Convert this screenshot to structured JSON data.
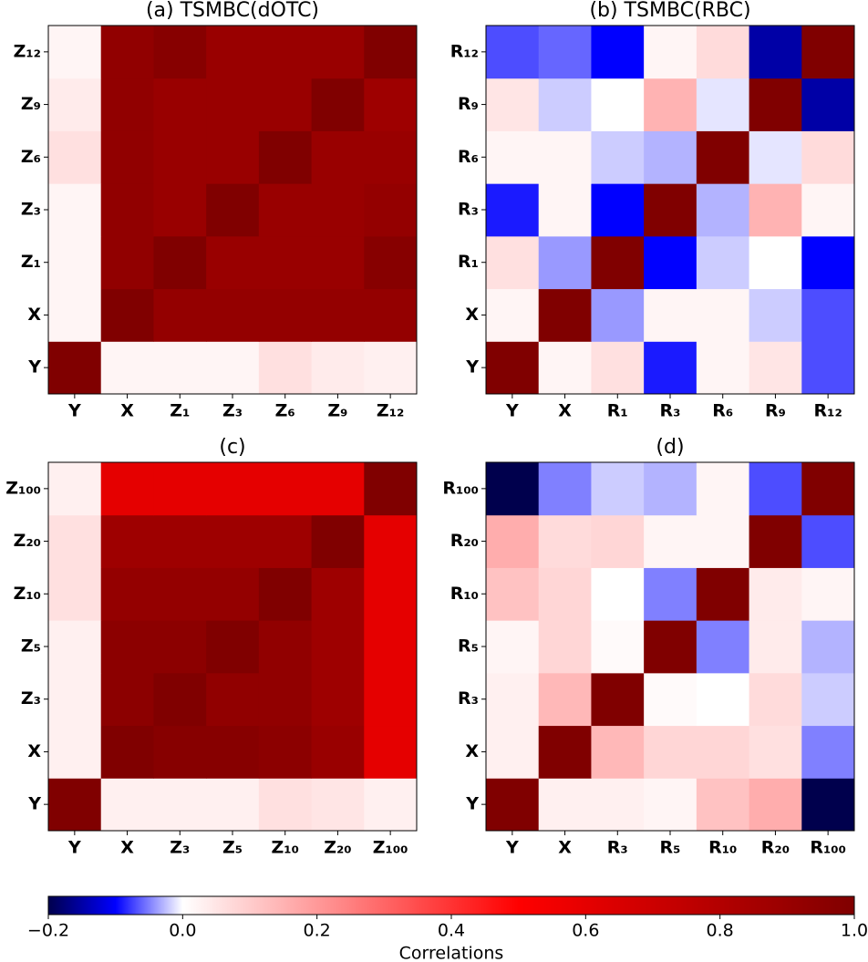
{
  "chart_data": [
    {
      "type": "heatmap",
      "title": "(a) TSMBC(dOTC)",
      "categories": [
        "Y",
        "X",
        "Z₁",
        "Z₃",
        "Z₆",
        "Z₉",
        "Z₁₂"
      ],
      "values": [
        [
          1,
          0.02,
          0.02,
          0.02,
          0.06,
          0.04,
          0.03
        ],
        [
          0.02,
          1,
          0.92,
          0.92,
          0.92,
          0.92,
          0.92
        ],
        [
          0.02,
          0.93,
          1,
          0.9,
          0.9,
          0.9,
          0.97
        ],
        [
          0.02,
          0.93,
          0.9,
          1,
          0.9,
          0.9,
          0.92
        ],
        [
          0.06,
          0.93,
          0.9,
          0.9,
          1,
          0.9,
          0.9
        ],
        [
          0.04,
          0.93,
          0.9,
          0.9,
          0.9,
          1,
          0.88
        ],
        [
          0.02,
          0.93,
          0.97,
          0.9,
          0.9,
          0.9,
          1
        ]
      ]
    },
    {
      "type": "heatmap",
      "title": "(b) TSMBC(RBC)",
      "categories": [
        "Y",
        "X",
        "R₁",
        "R₃",
        "R₆",
        "R₉",
        "R₁₂"
      ],
      "values": [
        [
          1,
          0.02,
          0.06,
          -0.09,
          0.02,
          0.05,
          -0.07
        ],
        [
          0.02,
          1,
          -0.04,
          0.02,
          0.02,
          -0.02,
          -0.07
        ],
        [
          0.06,
          -0.04,
          1,
          -0.1,
          -0.02,
          0.0,
          -0.1
        ],
        [
          -0.09,
          0.02,
          -0.1,
          1,
          -0.03,
          0.15,
          0.02
        ],
        [
          0.02,
          0.02,
          -0.02,
          -0.03,
          1,
          -0.01,
          0.07
        ],
        [
          0.05,
          -0.02,
          0.0,
          0.15,
          -0.01,
          1,
          -0.15
        ],
        [
          -0.07,
          -0.06,
          -0.1,
          0.02,
          0.07,
          -0.15,
          1
        ]
      ]
    },
    {
      "type": "heatmap",
      "title": "(c)",
      "categories": [
        "Y",
        "X",
        "Z₃",
        "Z₅",
        "Z₁₀",
        "Z₂₀",
        "Z₁₀₀"
      ],
      "values": [
        [
          1,
          0.03,
          0.03,
          0.03,
          0.06,
          0.05,
          0.03
        ],
        [
          0.03,
          1,
          0.97,
          0.97,
          0.95,
          0.9,
          0.6
        ],
        [
          0.03,
          0.95,
          1,
          0.93,
          0.93,
          0.88,
          0.6
        ],
        [
          0.03,
          0.95,
          0.95,
          1,
          0.93,
          0.88,
          0.6
        ],
        [
          0.06,
          0.92,
          0.92,
          0.92,
          1,
          0.88,
          0.6
        ],
        [
          0.06,
          0.88,
          0.88,
          0.88,
          0.88,
          1,
          0.6
        ],
        [
          0.03,
          0.6,
          0.6,
          0.6,
          0.6,
          0.6,
          1
        ]
      ]
    },
    {
      "type": "heatmap",
      "title": "(d)",
      "categories": [
        "Y",
        "X",
        "R₃",
        "R₅",
        "R₁₀",
        "R₂₀",
        "R₁₀₀"
      ],
      "values": [
        [
          1,
          0.03,
          0.03,
          0.02,
          0.12,
          0.16,
          -0.2
        ],
        [
          0.03,
          1,
          0.14,
          0.08,
          0.08,
          0.06,
          -0.05
        ],
        [
          0.03,
          0.14,
          1,
          0.01,
          0.0,
          0.07,
          -0.02
        ],
        [
          0.02,
          0.08,
          0.01,
          1,
          -0.05,
          0.04,
          -0.03
        ],
        [
          0.12,
          0.08,
          0.0,
          -0.05,
          1,
          0.04,
          0.02
        ],
        [
          0.16,
          0.07,
          0.08,
          0.02,
          0.02,
          1,
          -0.07
        ],
        [
          -0.2,
          -0.05,
          -0.02,
          -0.03,
          0.02,
          -0.07,
          1
        ]
      ]
    }
  ],
  "colorbar": {
    "label": "Correlations",
    "colormap": "seismic",
    "vcenter": 0,
    "lim": [
      -0.2,
      1.0
    ],
    "ticks": [
      {
        "value": -0.2,
        "label": "−0.2"
      },
      {
        "value": 0,
        "label": "0.0"
      },
      0.2,
      0.4,
      0.6,
      0.8,
      {
        "value": 1.0,
        "label": "1.0"
      }
    ]
  }
}
